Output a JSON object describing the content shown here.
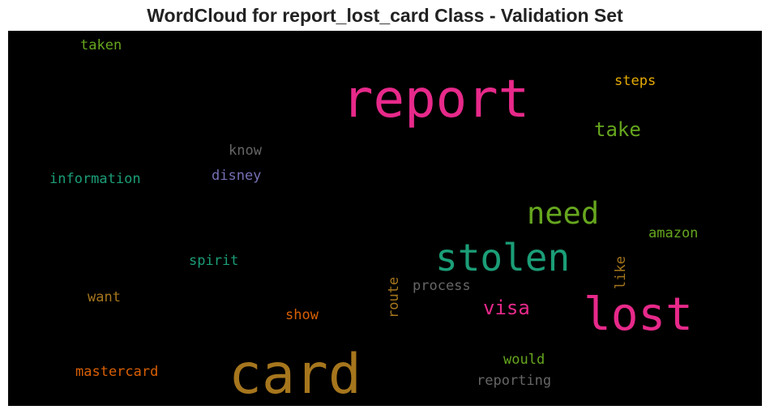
{
  "chart_data": {
    "type": "wordcloud",
    "title": "WordCloud for report_lost_card Class - Validation Set",
    "background": "#000000",
    "words": [
      {
        "text": "report",
        "weight": 1.0,
        "color": "#e7298a",
        "orientation": "horizontal"
      },
      {
        "text": "card",
        "weight": 1.0,
        "color": "#a6761d",
        "orientation": "horizontal"
      },
      {
        "text": "lost",
        "weight": 0.88,
        "color": "#e7298a",
        "orientation": "horizontal"
      },
      {
        "text": "stolen",
        "weight": 0.72,
        "color": "#1b9e77",
        "orientation": "horizontal"
      },
      {
        "text": "need",
        "weight": 0.62,
        "color": "#66a61e",
        "orientation": "horizontal"
      },
      {
        "text": "take",
        "weight": 0.4,
        "color": "#66a61e",
        "orientation": "horizontal"
      },
      {
        "text": "visa",
        "weight": 0.4,
        "color": "#e7298a",
        "orientation": "horizontal"
      },
      {
        "text": "steps",
        "weight": 0.3,
        "color": "#e6ab02",
        "orientation": "horizontal"
      },
      {
        "text": "know",
        "weight": 0.3,
        "color": "#666666",
        "orientation": "horizontal"
      },
      {
        "text": "disney",
        "weight": 0.3,
        "color": "#7570b3",
        "orientation": "horizontal"
      },
      {
        "text": "information",
        "weight": 0.3,
        "color": "#1b9e77",
        "orientation": "horizontal"
      },
      {
        "text": "taken",
        "weight": 0.3,
        "color": "#66a61e",
        "orientation": "horizontal"
      },
      {
        "text": "amazon",
        "weight": 0.3,
        "color": "#66a61e",
        "orientation": "horizontal"
      },
      {
        "text": "spirit",
        "weight": 0.3,
        "color": "#1b9e77",
        "orientation": "horizontal"
      },
      {
        "text": "process",
        "weight": 0.3,
        "color": "#666666",
        "orientation": "horizontal"
      },
      {
        "text": "want",
        "weight": 0.3,
        "color": "#a6761d",
        "orientation": "horizontal"
      },
      {
        "text": "show",
        "weight": 0.3,
        "color": "#d95f02",
        "orientation": "horizontal"
      },
      {
        "text": "route",
        "weight": 0.3,
        "color": "#a6761d",
        "orientation": "vertical"
      },
      {
        "text": "like",
        "weight": 0.3,
        "color": "#a6761d",
        "orientation": "vertical"
      },
      {
        "text": "would",
        "weight": 0.3,
        "color": "#66a61e",
        "orientation": "horizontal"
      },
      {
        "text": "mastercard",
        "weight": 0.3,
        "color": "#d95f02",
        "orientation": "horizontal"
      },
      {
        "text": "reporting",
        "weight": 0.3,
        "color": "#666666",
        "orientation": "horizontal"
      }
    ]
  }
}
